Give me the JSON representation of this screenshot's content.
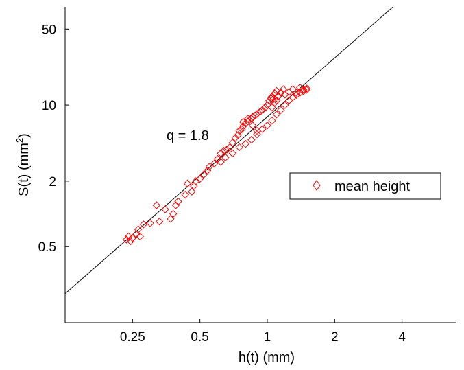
{
  "chart_data": {
    "type": "scatter",
    "xscale": "log",
    "yscale": "log",
    "xlim": [
      0.125,
      7
    ],
    "ylim": [
      0.1,
      80
    ],
    "xlabel": "h(t) (mm)",
    "ylabel_base": "S(t) (mm",
    "ylabel_sup": "2",
    "ylabel_end": ")",
    "xticks": [
      0.25,
      0.5,
      1,
      2,
      4
    ],
    "xtick_labels": [
      "0.25",
      "0.5",
      "1",
      "2",
      "4"
    ],
    "yticks": [
      0.5,
      2,
      10,
      50
    ],
    "ytick_labels": [
      "0.5",
      "2",
      "10",
      "50"
    ],
    "grid": false,
    "legend": {
      "position": "right",
      "entries": [
        "mean height"
      ]
    },
    "annotation": "q = 1.8",
    "marker_color": "#ff0000",
    "fit_line": {
      "exponent": 1.8,
      "coefficient": 7.8,
      "color": "#000000"
    },
    "series": [
      {
        "name": "mean height",
        "marker": "diamond",
        "x": [
          0.235,
          0.24,
          0.245,
          0.25,
          0.26,
          0.265,
          0.27,
          0.28,
          0.3,
          0.32,
          0.33,
          0.35,
          0.37,
          0.38,
          0.39,
          0.4,
          0.43,
          0.44,
          0.46,
          0.47,
          0.48,
          0.5,
          0.52,
          0.54,
          0.55,
          0.58,
          0.6,
          0.62,
          0.64,
          0.65,
          0.66,
          0.68,
          0.7,
          0.72,
          0.74,
          0.75,
          0.77,
          0.78,
          0.8,
          0.82,
          0.85,
          0.86,
          0.88,
          0.9,
          0.93,
          0.95,
          0.98,
          1.0,
          1.02,
          1.04,
          1.05,
          1.06,
          1.08,
          1.1,
          1.12,
          1.15,
          1.18,
          1.2,
          1.25,
          1.3,
          1.35,
          1.4,
          1.45,
          1.5,
          0.62,
          0.7,
          0.75,
          0.8,
          0.85,
          0.9,
          0.95,
          1.0,
          1.05,
          1.1,
          1.15,
          1.2,
          1.25,
          1.3,
          1.35,
          1.4,
          1.45,
          1.5,
          1.05,
          1.08,
          1.1,
          1.12,
          0.78,
          0.82,
          0.86,
          0.9
        ],
        "y": [
          0.58,
          0.62,
          0.56,
          0.6,
          0.65,
          0.72,
          0.62,
          0.8,
          0.82,
          1.2,
          0.85,
          1.1,
          0.9,
          1.0,
          1.2,
          1.3,
          1.5,
          1.9,
          1.6,
          1.8,
          2.0,
          2.1,
          2.3,
          2.5,
          2.7,
          2.9,
          3.2,
          3.6,
          3.8,
          3.3,
          3.9,
          4.1,
          4.5,
          5.0,
          5.3,
          5.8,
          6.0,
          6.4,
          6.8,
          7.1,
          7.5,
          7.8,
          8.0,
          8.3,
          8.7,
          9.0,
          9.5,
          10.0,
          11.0,
          11.5,
          12.0,
          11.2,
          12.8,
          13.5,
          12.1,
          13.0,
          14.0,
          12.5,
          13.2,
          14.0,
          13.0,
          14.5,
          13.8,
          14.2,
          3.0,
          3.6,
          4.1,
          4.4,
          4.8,
          5.4,
          6.0,
          6.5,
          7.2,
          8.2,
          9.0,
          10.0,
          11.0,
          11.8,
          12.4,
          13.0,
          13.4,
          13.8,
          9.5,
          10.5,
          11.0,
          12.0,
          7.0,
          7.5,
          6.5,
          5.8
        ]
      }
    ]
  }
}
